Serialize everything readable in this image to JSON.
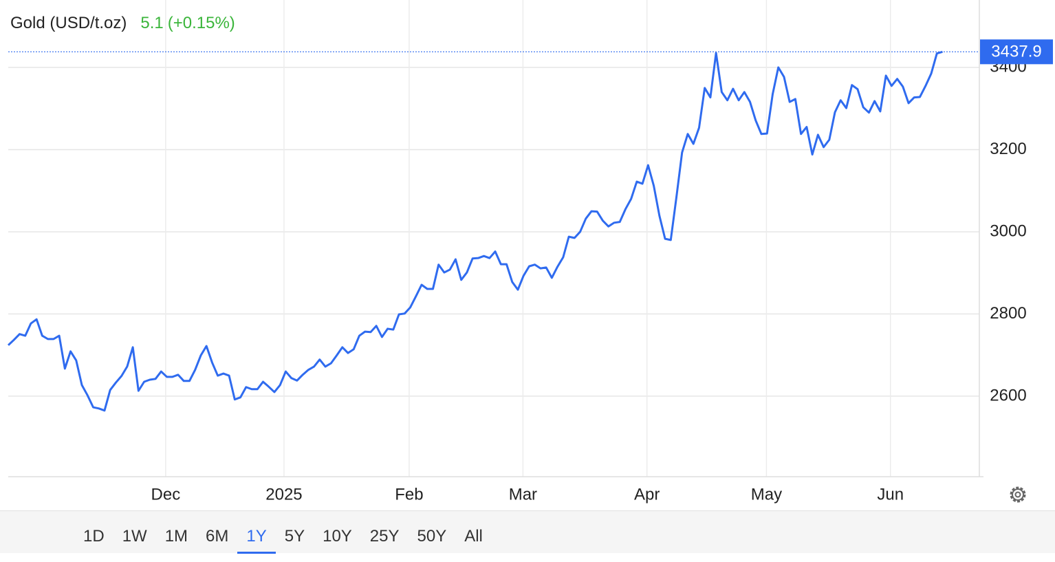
{
  "chart_data": {
    "type": "line",
    "title": "Gold (USD/t.oz)",
    "change": 5.1,
    "change_percent_label": "(+0.15%)",
    "series": [
      {
        "name": "Gold",
        "color": "#2f6bef",
        "values": [
          2724,
          2737,
          2751,
          2747,
          2777,
          2787,
          2747,
          2739,
          2739,
          2747,
          2667,
          2709,
          2687,
          2627,
          2602,
          2573,
          2570,
          2565,
          2615,
          2633,
          2649,
          2672,
          2719,
          2613,
          2635,
          2640,
          2642,
          2660,
          2647,
          2647,
          2652,
          2637,
          2637,
          2664,
          2699,
          2722,
          2682,
          2650,
          2655,
          2650,
          2592,
          2597,
          2622,
          2617,
          2617,
          2635,
          2623,
          2610,
          2627,
          2660,
          2644,
          2638,
          2652,
          2664,
          2672,
          2689,
          2672,
          2680,
          2699,
          2719,
          2705,
          2714,
          2747,
          2757,
          2756,
          2771,
          2744,
          2764,
          2762,
          2799,
          2801,
          2816,
          2843,
          2871,
          2861,
          2861,
          2920,
          2901,
          2908,
          2933,
          2883,
          2901,
          2935,
          2936,
          2941,
          2936,
          2952,
          2921,
          2921,
          2878,
          2859,
          2893,
          2916,
          2920,
          2911,
          2913,
          2888,
          2915,
          2938,
          2988,
          2985,
          3000,
          3032,
          3050,
          3049,
          3027,
          3013,
          3022,
          3024,
          3055,
          3080,
          3122,
          3117,
          3162,
          3112,
          3039,
          2983,
          2980,
          3084,
          3193,
          3238,
          3214,
          3253,
          3350,
          3327,
          3435,
          3340,
          3320,
          3348,
          3320,
          3340,
          3316,
          3271,
          3238,
          3239,
          3335,
          3400,
          3377,
          3316,
          3323,
          3238,
          3255,
          3188,
          3236,
          3206,
          3224,
          3291,
          3320,
          3301,
          3357,
          3347,
          3303,
          3290,
          3318,
          3293,
          3380,
          3355,
          3372,
          3353,
          3313,
          3327,
          3328,
          3355,
          3385,
          3434,
          3437.9
        ]
      }
    ],
    "xlim": [
      0,
      171.5
    ],
    "xticks": [
      {
        "value": 27.8,
        "label": "Dec"
      },
      {
        "value": 48.7,
        "label": "2025"
      },
      {
        "value": 70.8,
        "label": "Feb"
      },
      {
        "value": 90.9,
        "label": "Mar"
      },
      {
        "value": 112.8,
        "label": "Apr"
      },
      {
        "value": 133.9,
        "label": "May"
      },
      {
        "value": 155.8,
        "label": "Jun"
      }
    ],
    "ylim": [
      2404,
      3564
    ],
    "yticks": [
      2600,
      2800,
      3000,
      3200,
      3400
    ],
    "grid": true,
    "range_buttons": [
      "1D",
      "1W",
      "1M",
      "6M",
      "1Y",
      "5Y",
      "10Y",
      "25Y",
      "50Y",
      "All"
    ],
    "selected_range": "1Y"
  }
}
